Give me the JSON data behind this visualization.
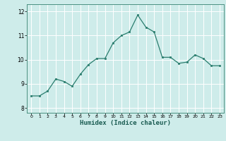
{
  "x": [
    0,
    1,
    2,
    3,
    4,
    5,
    6,
    7,
    8,
    9,
    10,
    11,
    12,
    13,
    14,
    15,
    16,
    17,
    18,
    19,
    20,
    21,
    22,
    23
  ],
  "y": [
    8.5,
    8.5,
    8.7,
    9.2,
    9.1,
    8.9,
    9.4,
    9.8,
    10.05,
    10.05,
    10.7,
    11.0,
    11.15,
    11.85,
    11.35,
    11.15,
    10.1,
    10.1,
    9.85,
    9.9,
    10.2,
    10.05,
    9.75,
    9.75
  ],
  "xlabel": "Humidex (Indice chaleur)",
  "xlim": [
    -0.5,
    23.5
  ],
  "ylim": [
    7.8,
    12.3
  ],
  "yticks": [
    8,
    9,
    10,
    11,
    12
  ],
  "xticks": [
    0,
    1,
    2,
    3,
    4,
    5,
    6,
    7,
    8,
    9,
    10,
    11,
    12,
    13,
    14,
    15,
    16,
    17,
    18,
    19,
    20,
    21,
    22,
    23
  ],
  "line_color": "#2a7d6e",
  "marker_color": "#2a7d6e",
  "grid_color": "#ffffff",
  "grid_major_color": "#c8e8e5",
  "plot_bg": "#ceecea",
  "fig_bg": "#ceecea"
}
